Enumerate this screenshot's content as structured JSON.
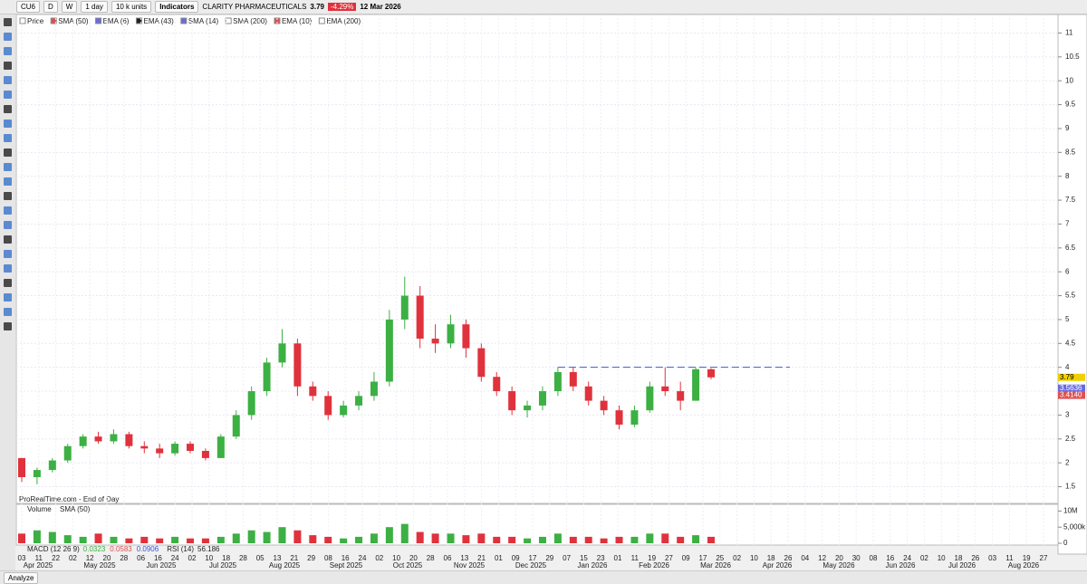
{
  "toolbar": {
    "symbol": "CU6",
    "daily": "D",
    "weekly": "W",
    "interval": "1 day",
    "units": "10 k units",
    "indicators": "Indicators",
    "instrument": "CLARITY PHARMACEUTICALS",
    "price": "3.79",
    "change": "-4.29%",
    "date": "12 Mar 2026"
  },
  "legend": [
    {
      "name": "Price",
      "color": "#ffffff"
    },
    {
      "name": "SMA (50)",
      "color": "#e05050"
    },
    {
      "name": "EMA (6)",
      "color": "#6a6ae0"
    },
    {
      "name": "EMA (43)",
      "color": "#222222"
    },
    {
      "name": "SMA (14)",
      "color": "#6a6ae0"
    },
    {
      "name": "SMA (200)",
      "color": "#ffffff"
    },
    {
      "name": "EMA (10)",
      "color": "#e05050"
    },
    {
      "name": "EMA (200)",
      "color": "#ffffff"
    }
  ],
  "footer_note": "ProRealTime.com - End of Day",
  "analyze": "Analyze",
  "chart_data": {
    "type": "candlestick",
    "up_color": "#3cb043",
    "down_color": "#e0323c",
    "ylim": [
      1.15,
      11.35
    ],
    "yticks": [
      1.5,
      2,
      2.5,
      3,
      3.5,
      4,
      4.5,
      5,
      5.5,
      6,
      6.5,
      7,
      7.5,
      8,
      8.5,
      9,
      9.5,
      10,
      10.5,
      11
    ],
    "open": [
      2.1,
      1.7,
      1.85,
      2.05,
      2.35,
      2.55,
      2.45,
      2.6,
      2.35,
      2.3,
      2.2,
      2.4,
      2.25,
      2.1,
      2.55,
      3.0,
      3.5,
      4.1,
      4.5,
      3.6,
      3.4,
      3.0,
      3.2,
      3.4,
      3.7,
      5.0,
      5.5,
      4.6,
      4.5,
      4.9,
      4.4,
      3.8,
      3.5,
      3.1,
      3.2,
      3.5,
      3.9,
      3.6,
      3.3,
      3.1,
      2.8,
      3.1,
      3.6,
      3.5,
      3.3,
      3.96
    ],
    "high": [
      2.1,
      1.9,
      2.1,
      2.4,
      2.6,
      2.65,
      2.7,
      2.65,
      2.45,
      2.4,
      2.45,
      2.45,
      2.3,
      2.6,
      3.1,
      3.6,
      4.2,
      4.8,
      4.6,
      3.7,
      3.5,
      3.3,
      3.5,
      3.9,
      5.2,
      5.9,
      5.7,
      4.9,
      5.1,
      5.0,
      4.5,
      3.9,
      3.6,
      3.3,
      3.6,
      4.0,
      4.0,
      3.7,
      3.4,
      3.2,
      3.2,
      3.7,
      4.0,
      3.7,
      4.0,
      3.98
    ],
    "low": [
      1.6,
      1.55,
      1.8,
      2.0,
      2.3,
      2.4,
      2.4,
      2.3,
      2.2,
      2.1,
      2.15,
      2.2,
      2.05,
      2.1,
      2.5,
      2.9,
      3.4,
      4.0,
      3.4,
      3.3,
      2.9,
      2.95,
      3.1,
      3.3,
      3.6,
      4.8,
      4.4,
      4.3,
      4.4,
      4.2,
      3.7,
      3.4,
      3.0,
      2.95,
      3.1,
      3.4,
      3.5,
      3.2,
      3.0,
      2.7,
      2.75,
      3.05,
      3.4,
      3.1,
      3.3,
      3.75
    ],
    "close": [
      1.7,
      1.85,
      2.05,
      2.35,
      2.55,
      2.45,
      2.6,
      2.35,
      2.3,
      2.2,
      2.4,
      2.25,
      2.1,
      2.55,
      3.0,
      3.5,
      4.1,
      4.5,
      3.6,
      3.4,
      3.0,
      3.2,
      3.4,
      3.7,
      5.0,
      5.5,
      4.6,
      4.5,
      4.9,
      4.4,
      3.8,
      3.5,
      3.1,
      3.2,
      3.5,
      3.9,
      3.6,
      3.3,
      3.1,
      2.8,
      3.1,
      3.6,
      3.5,
      3.3,
      3.96,
      3.79
    ],
    "resistance": 4,
    "resistance_color": "#3a5ad0",
    "price_labels": [
      {
        "value": 3.79,
        "label": "3.79",
        "color": "#f0d000"
      },
      {
        "value": 3.5636,
        "label": "3.5636",
        "color": "#6a6ae0"
      },
      {
        "value": 3.414,
        "label": "3.4140",
        "color": "#e05050"
      }
    ],
    "volume": {
      "name": "Volume",
      "ma": "SMA (50)",
      "ylim": [
        0,
        11800000
      ],
      "yticks": [
        {
          "value": 10000000,
          "label": "10M"
        },
        {
          "value": 5000000,
          "label": "5,000k"
        },
        0
      ],
      "values": [
        3000000,
        4000000,
        3500000,
        2500000,
        2000000,
        3000000,
        2000000,
        1500000,
        2000000,
        1500000,
        2000000,
        1500000,
        1500000,
        2000000,
        3000000,
        4000000,
        3500000,
        5000000,
        4000000,
        2500000,
        2000000,
        1500000,
        2000000,
        3000000,
        5000000,
        6000000,
        3500000,
        3000000,
        3000000,
        2500000,
        3000000,
        2000000,
        2000000,
        1500000,
        2000000,
        3000000,
        2000000,
        2000000,
        1500000,
        2000000,
        2000000,
        3000000,
        3000000,
        2000000,
        2500000,
        2000000
      ]
    },
    "indicators": [
      {
        "name": "MACD (12 26 9)",
        "values": [
          "0.0323",
          "0.0583",
          "0.0906"
        ],
        "colors": [
          "#3cb043",
          "#e05050",
          "#3a5ad0"
        ]
      },
      {
        "name": "RSI (14)",
        "values": [
          "56.186"
        ],
        "colors": [
          "#222222"
        ]
      }
    ],
    "time_axis": {
      "days": [
        "03",
        "11",
        "22",
        "02",
        "12",
        "20",
        "28",
        "06",
        "16",
        "24",
        "02",
        "10",
        "18",
        "28",
        "05",
        "13",
        "21",
        "29",
        "08",
        "16",
        "24",
        "02",
        "10",
        "20",
        "28",
        "06",
        "13",
        "21",
        "01",
        "09",
        "17",
        "29",
        "07",
        "15",
        "23",
        "01",
        "11",
        "19",
        "27",
        "09",
        "17",
        "25",
        "02",
        "10",
        "18",
        "26",
        "04",
        "12",
        "20",
        "30",
        "08",
        "16",
        "24",
        "02",
        "10",
        "18",
        "26",
        "03",
        "11",
        "19",
        "27"
      ],
      "months": [
        "Apr 2025",
        "May 2025",
        "Jun 2025",
        "Jul 2025",
        "Aug 2025",
        "Sept 2025",
        "Oct 2025",
        "Nov 2025",
        "Dec 2025",
        "Jan 2026",
        "Feb 2026",
        "Mar 2026",
        "Apr 2026",
        "May 2026",
        "Jun 2026",
        "Jul 2026",
        "Aug 2026"
      ]
    }
  }
}
